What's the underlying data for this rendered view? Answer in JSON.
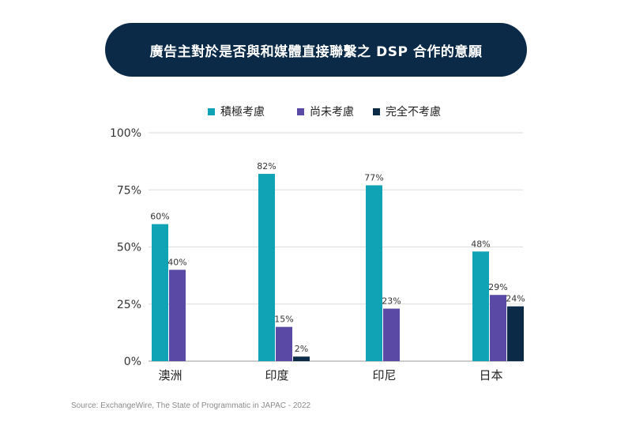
{
  "title": "廣告主對於是否與和媒體直接聯繫之 DSP 合作的意願",
  "source": "Source: ExchangeWire, The State of Programmatic in JAPAC - 2022",
  "colors": {
    "title_bg": "#0b2a47",
    "series": [
      "#10a3b5",
      "#5b4aa5",
      "#0b2a47"
    ],
    "grid": "#dcdcdc",
    "axis": "#333333"
  },
  "chart_data": {
    "type": "bar",
    "categories": [
      "澳洲",
      "印度",
      "印尼",
      "日本"
    ],
    "series": [
      {
        "name": "積極考慮",
        "values": [
          60,
          82,
          77,
          48
        ]
      },
      {
        "name": "尚未考慮",
        "values": [
          40,
          15,
          23,
          29
        ]
      },
      {
        "name": "完全不考慮",
        "values": [
          null,
          2,
          null,
          24
        ]
      }
    ],
    "value_labels": [
      [
        "60%",
        "82%",
        "77%",
        "48%"
      ],
      [
        "40%",
        "15%",
        "23%",
        "29%"
      ],
      [
        null,
        "2%",
        null,
        "24%"
      ]
    ],
    "y_ticks": [
      {
        "value": 0,
        "label": "0%"
      },
      {
        "value": 25,
        "label": "25%"
      },
      {
        "value": 50,
        "label": "50%"
      },
      {
        "value": 75,
        "label": "75%"
      },
      {
        "value": 100,
        "label": "100%"
      }
    ],
    "ylim": [
      0,
      100
    ],
    "grid": true,
    "legend_position": "top-center",
    "title": "廣告主對於是否與和媒體直接聯繫之 DSP 合作的意願",
    "xlabel": "",
    "ylabel": ""
  }
}
